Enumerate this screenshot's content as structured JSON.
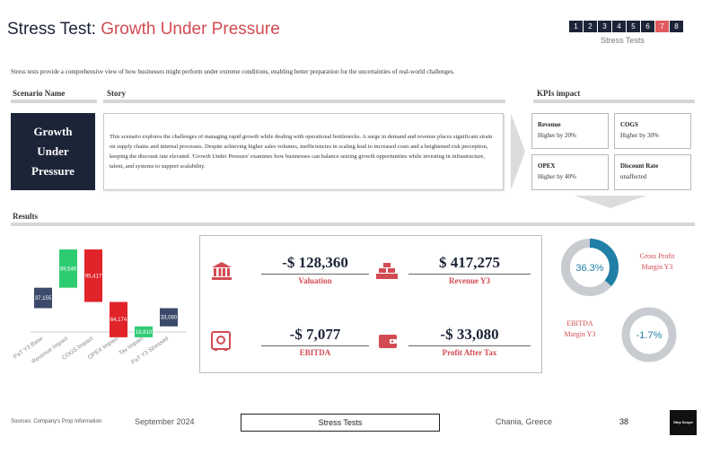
{
  "title": {
    "prefix": "Stress Test: ",
    "accent": "Growth Under Pressure"
  },
  "pager": {
    "pages": [
      "1",
      "2",
      "3",
      "4",
      "5",
      "6",
      "7",
      "8"
    ],
    "active": "7",
    "label": "Stress Tests"
  },
  "intro": "Stress tests provide a comprehensive view of how businesses might perform under extreme conditions, enabling better preparation for the uncertainties of real-world challenges.",
  "sections": {
    "scenario": "Scenario Name",
    "story": "Story",
    "kpis": "KPIs impact",
    "results": "Results"
  },
  "scenario": {
    "line1": "Growth",
    "line2": "Under",
    "line3": "Pressure"
  },
  "story": "This scenario explores the challenges of managing rapid growth while dealing with operational bottlenecks. A surge in demand and revenue places significant strain on supply chains and internal processes. Despite achieving higher sales volumes, inefficiencies in scaling lead to increased costs and a heightened risk perception, keeping the discount rate elevated. 'Growth Under Pressure' examines how businesses can balance seizing growth opportunities while investing in infrastructure, talent, and systems to support scalability.",
  "kpis": [
    {
      "title": "Revenue",
      "value": "Higher by 20%"
    },
    {
      "title": "COGS",
      "value": "Higher by 30%"
    },
    {
      "title": "OPEX",
      "value": "Higher by 40%"
    },
    {
      "title": "Discount Rate",
      "value": "unaffected"
    }
  ],
  "metrics": {
    "valuation": {
      "value": "-$ 128,360",
      "label": "Valuation"
    },
    "revenue": {
      "value": "$ 417,275",
      "label": "Revenue Y3"
    },
    "ebitda": {
      "value": "-$ 7,077",
      "label": "EBITDA"
    },
    "pat": {
      "value": "-$ 33,080",
      "label": "Profit After Tax"
    }
  },
  "donuts": {
    "gross": {
      "value": "36.3%",
      "fraction": 0.363,
      "label1": "Gross Profit",
      "label2": "Margin Y3",
      "color": "#1f7fa6"
    },
    "ebitda": {
      "value": "-1.7%",
      "fraction": 0.0,
      "label1": "EBITDA",
      "label2": "Margin Y3",
      "color": "#1f7fa6"
    }
  },
  "chart_data": {
    "type": "bar",
    "subtype": "waterfall",
    "categories": [
      "PaT Y3 Base",
      "Revenue Impact",
      "COGS Impact",
      "OPEX Impact",
      "Tax Impact",
      "PaT Y3 Stressed"
    ],
    "values": [
      37155,
      69546,
      -95417,
      -64174,
      19810,
      -33080
    ],
    "labels": [
      "37,155",
      "69,546",
      "95,417",
      "64,174",
      "19,810",
      "33,080"
    ],
    "colors": [
      "#3b4a6b",
      "#2ecc71",
      "#e0242a",
      "#e0242a",
      "#2ecc71",
      "#3b4a6b"
    ],
    "title": "",
    "xlabel": "",
    "ylabel": ""
  },
  "footer": {
    "source": "Sources: Company's Prop Information",
    "date": "September 2024",
    "section": "Stress Tests",
    "location": "Chania, Greece",
    "page": "38",
    "logo": "Step Scope"
  }
}
